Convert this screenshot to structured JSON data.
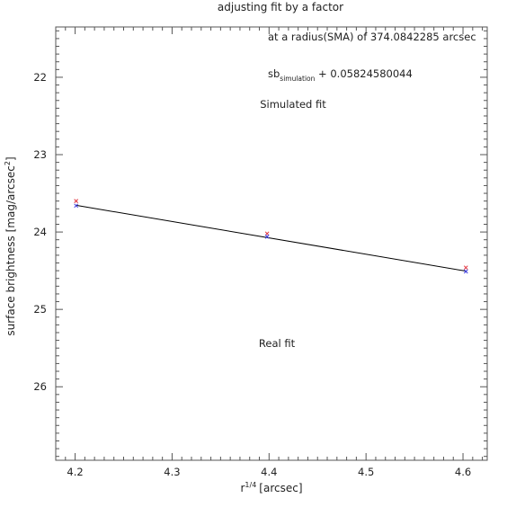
{
  "chart_data": {
    "type": "scatter",
    "title": "adjusting fit by a factor",
    "xlabel": "r",
    "xlabel_sup": "1/4",
    "xlabel_unit": "[arcsec]",
    "ylabel": "surface brightness [mag/arcsec",
    "ylabel_sup": "2",
    "ylabel_end": "]",
    "xlim": [
      4.18,
      4.625
    ],
    "ylim": [
      21.35,
      26.95
    ],
    "y_inverted": true,
    "x_ticks": [
      4.2,
      4.3,
      4.4,
      4.5,
      4.6
    ],
    "x_tick_labels": [
      "4.2",
      "4.3",
      "4.4",
      "4.5",
      "4.6"
    ],
    "y_ticks": [
      22,
      23,
      24,
      25,
      26
    ],
    "y_tick_labels": [
      "22",
      "23",
      "24",
      "25",
      "26"
    ],
    "grid": false,
    "series": [
      {
        "name": "Simulated fit",
        "color": "#e0303a",
        "marker": "x",
        "x": [
          4.201,
          4.398,
          4.603
        ],
        "y": [
          23.6,
          24.02,
          24.46
        ]
      },
      {
        "name": "Real fit",
        "color": "#3a3ae0",
        "marker": "x",
        "x": [
          4.201,
          4.398,
          4.603
        ],
        "y": [
          23.66,
          24.06,
          24.51
        ]
      }
    ],
    "fit_line": {
      "color": "#000000",
      "x": [
        4.201,
        4.603
      ],
      "y": [
        23.655,
        24.505
      ]
    },
    "annotations": {
      "radius_prefix": "at a radius(SMA) of ",
      "radius_value": "374.0842285",
      "radius_unit": " arcsec",
      "sb_base": "sb",
      "sb_sub": "simulation",
      "sb_rest": " + 0.05824580044"
    }
  }
}
